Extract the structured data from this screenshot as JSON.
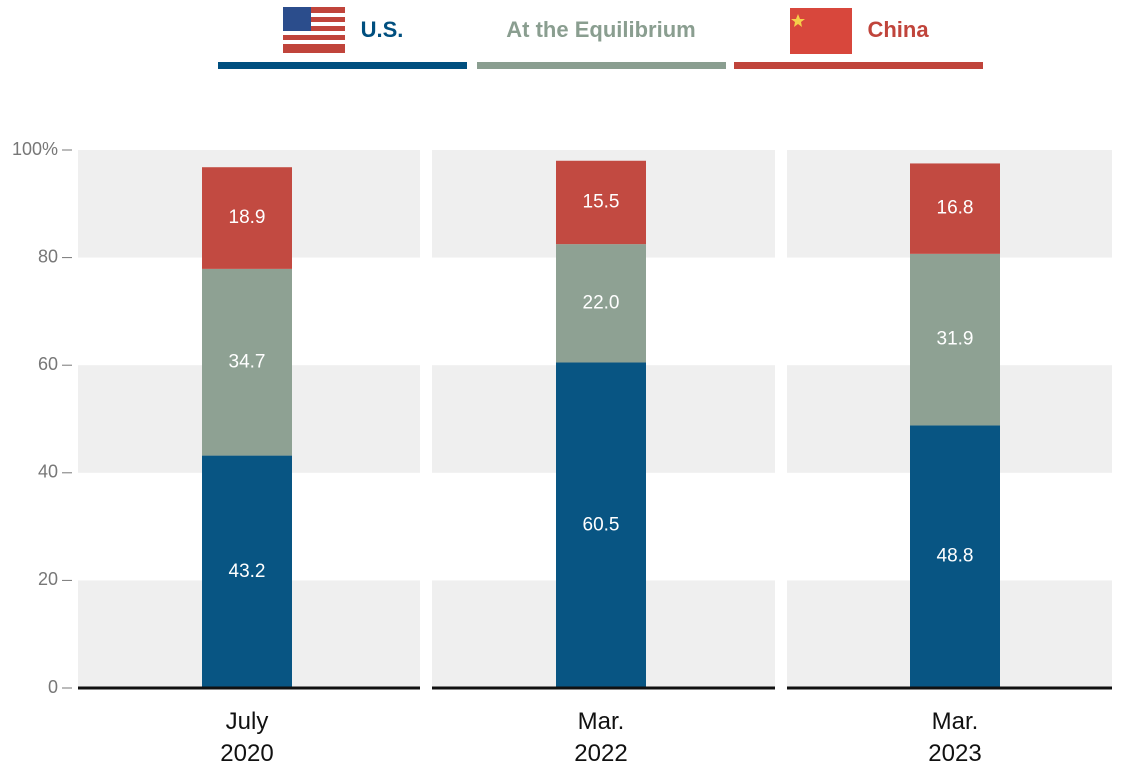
{
  "chart_data": {
    "type": "stacked_bar",
    "categories": [
      "July\n2020",
      "Mar.\n2022",
      "Mar.\n2023"
    ],
    "series": [
      {
        "name": "U.S.",
        "color": "#004f7f",
        "values": [
          43.2,
          60.5,
          48.8
        ],
        "value_labels": [
          "43.2",
          "60.5",
          "48.8"
        ]
      },
      {
        "name": "At the Equilibrium",
        "color": "#8a9e90",
        "values": [
          34.7,
          22.0,
          31.9
        ],
        "value_labels": [
          "34.7",
          "22.0",
          "31.9"
        ]
      },
      {
        "name": "China",
        "color": "#c0443b",
        "values": [
          18.9,
          15.5,
          16.8
        ],
        "value_labels": [
          "18.9",
          "15.5",
          "16.8"
        ]
      }
    ],
    "ylim": [
      0,
      100
    ],
    "yticks": [
      0,
      20,
      40,
      60,
      80,
      {
        "value": 100,
        "label": "100%"
      }
    ],
    "grid": true
  }
}
